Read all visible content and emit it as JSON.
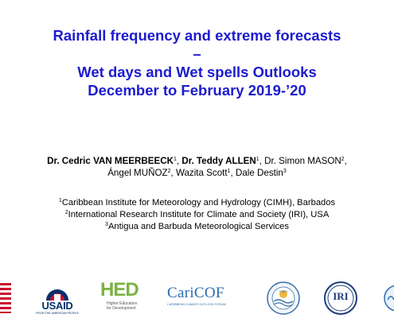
{
  "title": {
    "line1": "Rainfall frequency and extreme forecasts",
    "line2": "–",
    "line3": "Wet days and Wet spells Outlooks",
    "line4": "December to February 2019-’20"
  },
  "authors": [
    {
      "name": "Dr. Cedric VAN MEERBEECK",
      "sup": "1",
      "bold": true,
      "sep": ", "
    },
    {
      "name": "Dr. Teddy ALLEN",
      "sup": "1",
      "bold": true,
      "sep": ", "
    },
    {
      "name": "Dr. Simon MASON",
      "sup": "2",
      "bold": false,
      "sep": ","
    },
    {
      "name": "Ángel MUÑOZ",
      "sup": "2",
      "bold": false,
      "sep": ", "
    },
    {
      "name": "Wazita Scott",
      "sup": "1",
      "bold": false,
      "sep": ", "
    },
    {
      "name": "Dale Destin",
      "sup": "3",
      "bold": false,
      "sep": ""
    }
  ],
  "affiliations": [
    {
      "sup": "1",
      "text": "Caribbean Institute for Meteorology and Hydrology (CIMH), Barbados"
    },
    {
      "sup": "2",
      "text": "International Research Institute for Climate and Society (IRI), USA"
    },
    {
      "sup": "3",
      "text": "Antigua and Barbuda Meteorological Services"
    }
  ],
  "logos": {
    "usaid": {
      "main": "USAID",
      "sub": "FROM THE AMERICAN PEOPLE"
    },
    "hed": {
      "main": "HED",
      "sub1": "Higher Education",
      "sub2": "for Development"
    },
    "caricof": {
      "main": "CariCOF",
      "sub": "CARIBBEAN CLIMATE OUTLOOK FORUM"
    },
    "cimh": {
      "text": "CIMH"
    },
    "iri": {
      "text": "IRI"
    }
  },
  "colors": {
    "title": "#1c1ccf",
    "usaid_blue": "#002f6c",
    "usaid_red": "#c8102e",
    "hed_green": "#7cb342",
    "caricof": "#2b6cb0"
  }
}
